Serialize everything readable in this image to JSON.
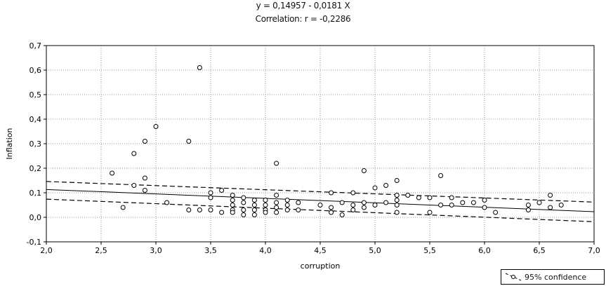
{
  "chart_data": {
    "type": "scatter",
    "title": "y = 0,14957 - 0,0181 X",
    "subtitle": "Correlation: r = -0,2286",
    "xlabel": "corruption",
    "ylabel": "Inflation",
    "xlim": [
      2.0,
      7.0
    ],
    "ylim": [
      -0.1,
      0.7
    ],
    "x_ticks": [
      2.0,
      2.5,
      3.0,
      3.5,
      4.0,
      4.5,
      5.0,
      5.5,
      6.0,
      6.5,
      7.0
    ],
    "x_tick_labels": [
      "2,0",
      "2,5",
      "3,0",
      "3,5",
      "4,0",
      "4,5",
      "5,0",
      "5,5",
      "6,0",
      "6,5",
      "7,0"
    ],
    "y_ticks": [
      -0.1,
      0.0,
      0.1,
      0.2,
      0.3,
      0.4,
      0.5,
      0.6,
      0.7
    ],
    "y_tick_labels": [
      "-0,1",
      "0,0",
      "0,1",
      "0,2",
      "0,3",
      "0,4",
      "0,5",
      "0,6",
      "0,7"
    ],
    "grid": true,
    "regression": {
      "intercept": 0.14957,
      "slope": -0.0181
    },
    "confidence": {
      "label": "95% confidence",
      "lower_at_xmin": 0.074,
      "lower_at_xmax": -0.018,
      "upper_at_xmin": 0.146,
      "upper_at_xmax": 0.062
    },
    "legend_position": "bottom-right",
    "points": [
      [
        2.6,
        0.18
      ],
      [
        2.7,
        0.04
      ],
      [
        2.8,
        0.26
      ],
      [
        2.8,
        0.13
      ],
      [
        2.9,
        0.31
      ],
      [
        2.9,
        0.16
      ],
      [
        2.9,
        0.11
      ],
      [
        3.0,
        0.37
      ],
      [
        3.1,
        0.06
      ],
      [
        3.3,
        0.31
      ],
      [
        3.3,
        0.03
      ],
      [
        3.4,
        0.61
      ],
      [
        3.4,
        0.03
      ],
      [
        3.5,
        0.1
      ],
      [
        3.5,
        0.08
      ],
      [
        3.5,
        0.03
      ],
      [
        3.6,
        0.11
      ],
      [
        3.6,
        0.02
      ],
      [
        3.7,
        0.09
      ],
      [
        3.7,
        0.07
      ],
      [
        3.7,
        0.05
      ],
      [
        3.7,
        0.03
      ],
      [
        3.7,
        0.02
      ],
      [
        3.8,
        0.08
      ],
      [
        3.8,
        0.06
      ],
      [
        3.8,
        0.03
      ],
      [
        3.8,
        0.01
      ],
      [
        3.9,
        0.07
      ],
      [
        3.9,
        0.05
      ],
      [
        3.9,
        0.03
      ],
      [
        3.9,
        0.01
      ],
      [
        4.0,
        0.07
      ],
      [
        4.0,
        0.05
      ],
      [
        4.0,
        0.03
      ],
      [
        4.0,
        0.02
      ],
      [
        4.1,
        0.22
      ],
      [
        4.1,
        0.09
      ],
      [
        4.1,
        0.06
      ],
      [
        4.1,
        0.04
      ],
      [
        4.1,
        0.02
      ],
      [
        4.2,
        0.07
      ],
      [
        4.2,
        0.05
      ],
      [
        4.2,
        0.03
      ],
      [
        4.3,
        0.06
      ],
      [
        4.3,
        0.03
      ],
      [
        4.5,
        0.05
      ],
      [
        4.6,
        0.1
      ],
      [
        4.6,
        0.04
      ],
      [
        4.6,
        0.02
      ],
      [
        4.7,
        0.06
      ],
      [
        4.7,
        0.01
      ],
      [
        4.8,
        0.1
      ],
      [
        4.8,
        0.05
      ],
      [
        4.8,
        0.03
      ],
      [
        4.9,
        0.19
      ],
      [
        4.9,
        0.06
      ],
      [
        4.9,
        0.04
      ],
      [
        5.0,
        0.12
      ],
      [
        5.0,
        0.05
      ],
      [
        5.1,
        0.13
      ],
      [
        5.1,
        0.06
      ],
      [
        5.2,
        0.15
      ],
      [
        5.2,
        0.09
      ],
      [
        5.2,
        0.07
      ],
      [
        5.2,
        0.05
      ],
      [
        5.2,
        0.02
      ],
      [
        5.3,
        0.09
      ],
      [
        5.4,
        0.08
      ],
      [
        5.5,
        0.08
      ],
      [
        5.5,
        0.02
      ],
      [
        5.6,
        0.17
      ],
      [
        5.6,
        0.05
      ],
      [
        5.7,
        0.08
      ],
      [
        5.7,
        0.05
      ],
      [
        5.8,
        0.06
      ],
      [
        5.9,
        0.06
      ],
      [
        6.0,
        0.07
      ],
      [
        6.0,
        0.04
      ],
      [
        6.1,
        0.02
      ],
      [
        6.4,
        0.05
      ],
      [
        6.4,
        0.03
      ],
      [
        6.5,
        0.06
      ],
      [
        6.6,
        0.09
      ],
      [
        6.6,
        0.04
      ],
      [
        6.7,
        0.05
      ]
    ]
  }
}
